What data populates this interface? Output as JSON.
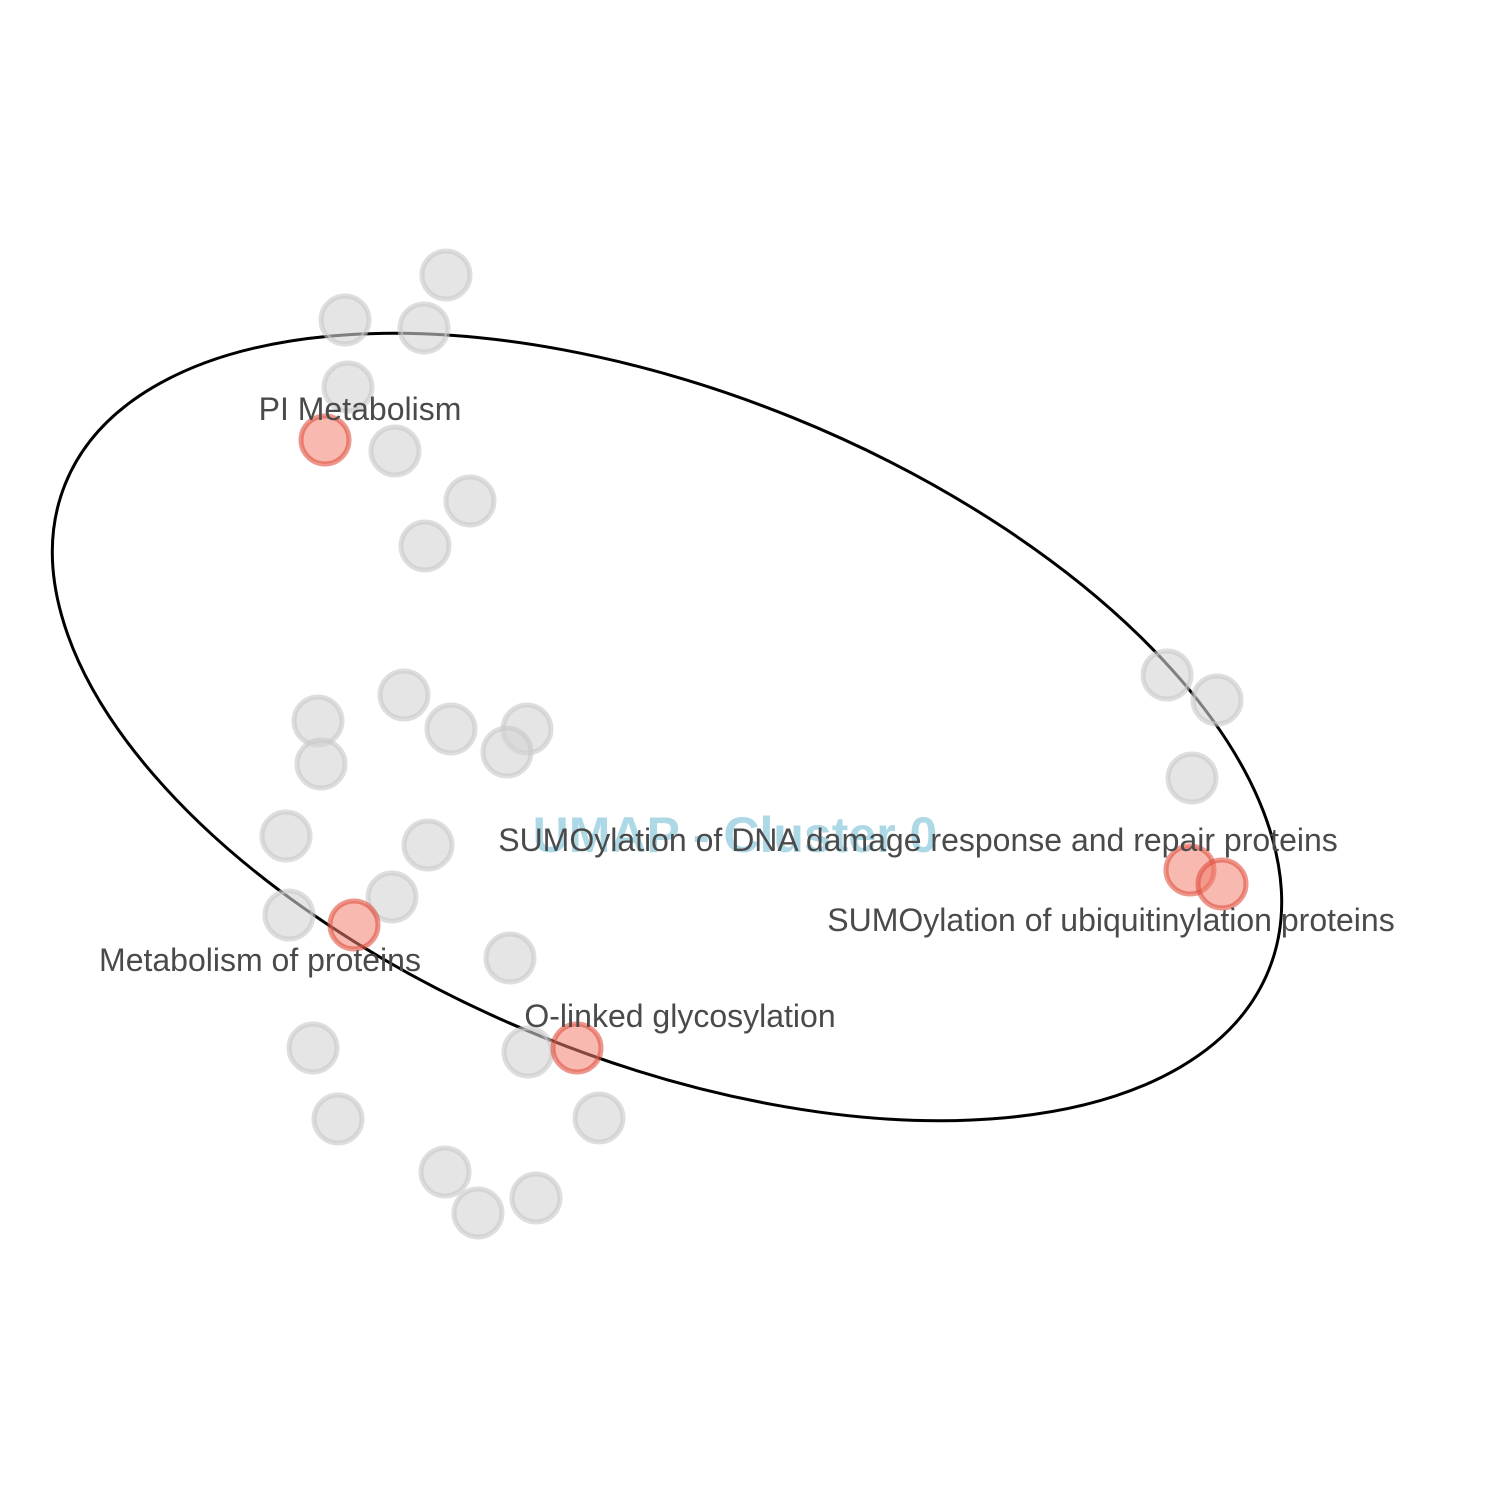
{
  "chart_data": {
    "type": "scatter",
    "title": "UMAP - Cluster 0",
    "xlabel": "",
    "ylabel": "",
    "grid": false,
    "axes_visible": false,
    "colors": {
      "background_point_fill": "#d3d3d3",
      "background_point_stroke": "#c8c8c8",
      "highlight_point_fill": "#f08070",
      "highlight_point_stroke": "#e05040",
      "label_text": "#4a4a4a",
      "title_text": "#add8e6",
      "ellipse_stroke": "#000000"
    },
    "background_points": [
      {
        "x": 4.46,
        "y": 12.25
      },
      {
        "x": 3.45,
        "y": 11.8
      },
      {
        "x": 4.24,
        "y": 11.72
      },
      {
        "x": 3.48,
        "y": 11.13
      },
      {
        "x": 3.95,
        "y": 10.49
      },
      {
        "x": 4.7,
        "y": 9.99
      },
      {
        "x": 4.25,
        "y": 9.54
      },
      {
        "x": 4.04,
        "y": 8.05
      },
      {
        "x": 3.18,
        "y": 7.79
      },
      {
        "x": 4.51,
        "y": 7.71
      },
      {
        "x": 5.27,
        "y": 7.71
      },
      {
        "x": 5.07,
        "y": 7.48
      },
      {
        "x": 3.21,
        "y": 7.36
      },
      {
        "x": 2.86,
        "y": 6.64
      },
      {
        "x": 4.28,
        "y": 6.55
      },
      {
        "x": 3.92,
        "y": 6.03
      },
      {
        "x": 2.89,
        "y": 5.85
      },
      {
        "x": 5.1,
        "y": 5.42
      },
      {
        "x": 3.13,
        "y": 4.52
      },
      {
        "x": 5.28,
        "y": 4.48
      },
      {
        "x": 3.38,
        "y": 3.81
      },
      {
        "x": 5.99,
        "y": 3.82
      },
      {
        "x": 4.45,
        "y": 3.28
      },
      {
        "x": 5.36,
        "y": 3.02
      },
      {
        "x": 4.78,
        "y": 2.87
      },
      {
        "x": 11.67,
        "y": 8.25
      },
      {
        "x": 12.17,
        "y": 8.0
      },
      {
        "x": 11.92,
        "y": 7.22
      }
    ],
    "highlighted_points": [
      {
        "x": 3.25,
        "y": 10.6,
        "label": "PI Metabolism"
      },
      {
        "x": 3.54,
        "y": 5.75,
        "label": "Metabolism of proteins"
      },
      {
        "x": 5.77,
        "y": 4.52,
        "label": "O-linked glycosylation"
      },
      {
        "x": 11.9,
        "y": 6.3,
        "label": "SUMOylation of DNA damage response and repair proteins"
      },
      {
        "x": 12.22,
        "y": 6.16,
        "label": "SUMOylation of ubiquitinylation proteins"
      }
    ],
    "ellipse": {
      "cx": 6.67,
      "cy": 7.73,
      "rx": 6.49,
      "ry": 3.34,
      "angle_deg": -22
    },
    "xlim": [
      0,
      15
    ],
    "ylim": [
      0,
      15
    ]
  }
}
